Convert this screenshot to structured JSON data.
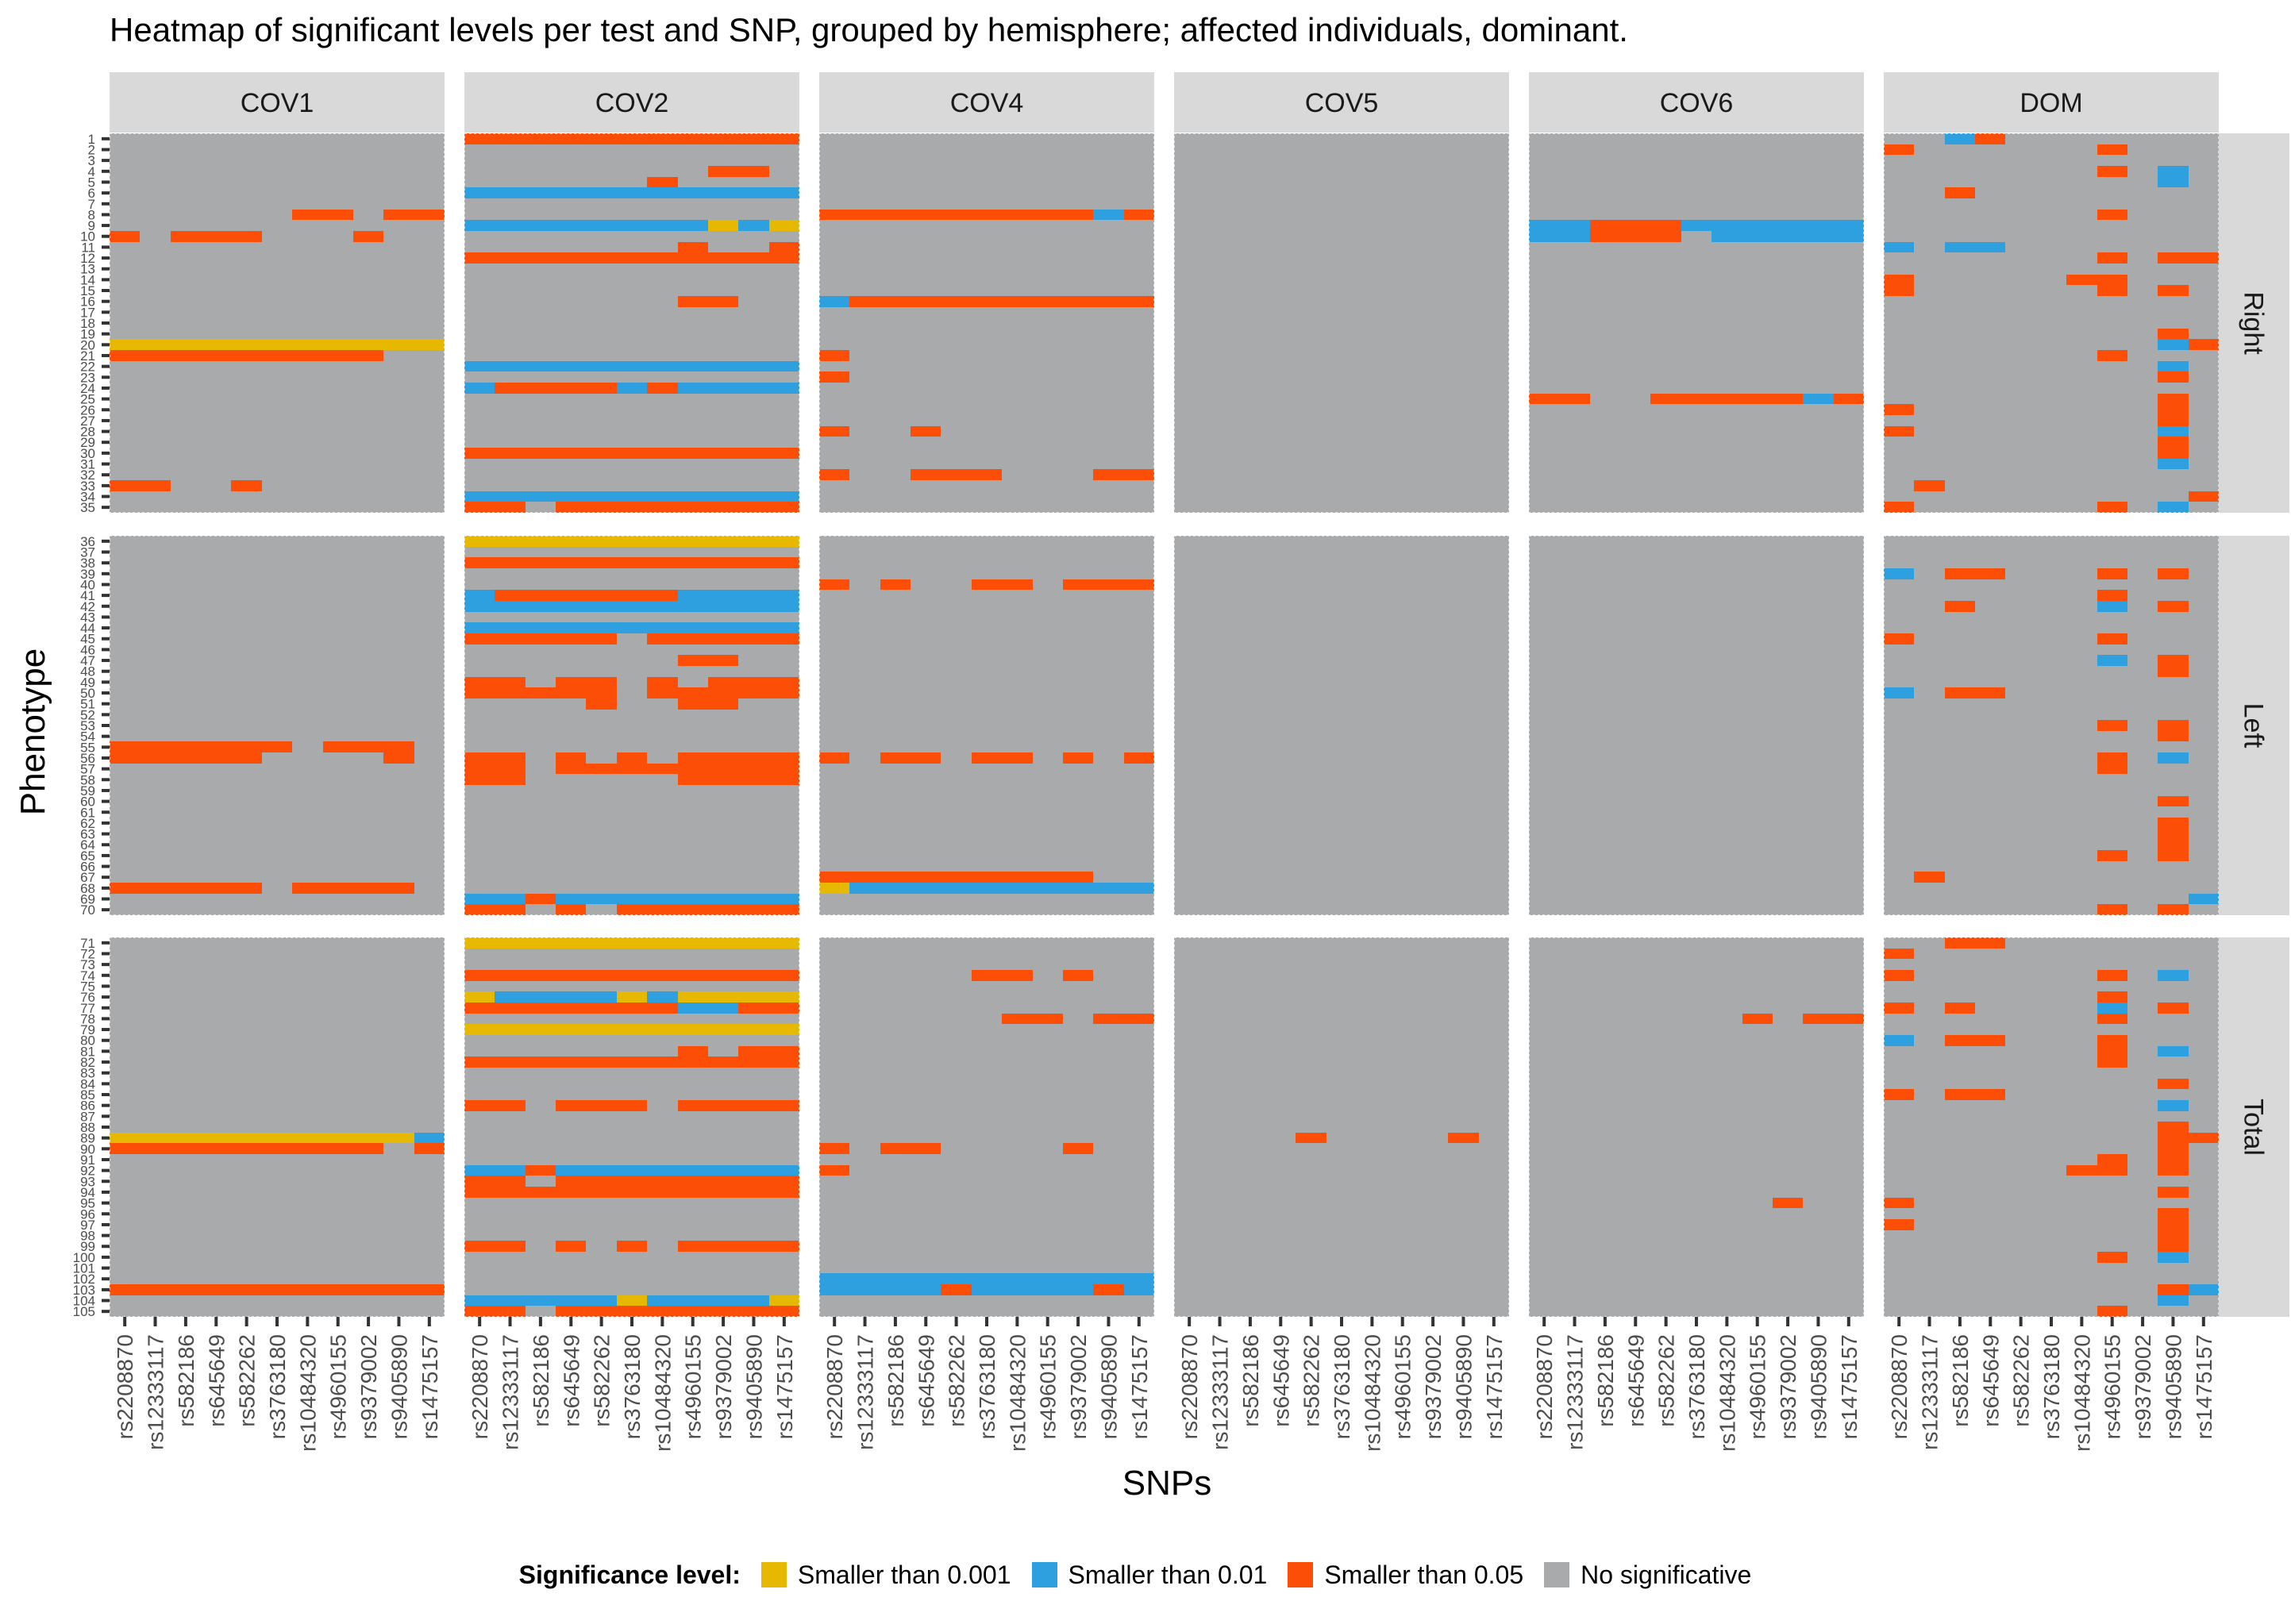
{
  "chart_data": {
    "type": "heatmap",
    "title": "Heatmap of significant levels per test and SNP, grouped by hemisphere; affected individuals, dominant.",
    "xlabel": "SNPs",
    "ylabel": "Phenotype",
    "tests": [
      "COV1",
      "COV2",
      "COV4",
      "COV5",
      "COV6",
      "DOM"
    ],
    "hemispheres": [
      {
        "name": "Right",
        "rows": [
          1,
          35
        ]
      },
      {
        "name": "Left",
        "rows": [
          36,
          70
        ]
      },
      {
        "name": "Total",
        "rows": [
          71,
          105
        ]
      }
    ],
    "snps": [
      "rs2208870",
      "rs12333117",
      "rs582186",
      "rs645649",
      "rs582262",
      "rs3763180",
      "rs10484320",
      "rs4960155",
      "rs9379002",
      "rs9405890",
      "rs1475157"
    ],
    "levels": {
      "Y": {
        "label": "Smaller than 0.001",
        "color": "#E6B800"
      },
      "B": {
        "label": "Smaller than 0.01",
        "color": "#2E9FDF"
      },
      "O": {
        "label": "Smaller than 0.05",
        "color": "#FC4E07"
      },
      "N": {
        "label": "No significative",
        "color": "#A9AAAC"
      }
    },
    "cell_encoding": "Each test maps phenotype row number to an 11-character string, one character per SNP in the order of 'snps'. Y = smaller than 0.001, B = smaller than 0.01, O = smaller than 0.05, N = no significative. Rows not listed are N for all SNPs.",
    "cells": {
      "COV1": {
        "8": "NNNNNNOONOO",
        "10": "ONOOONNNONN",
        "20": "YYYYYYYYYYY",
        "21": "OOOOOOOOONN",
        "33": "OONNONNNNNN",
        "55": "OOOOOONOOON",
        "56": "OOOOONNNNON",
        "68": "OOOOONOOOON",
        "89": "YYYYYYYYYYB",
        "90": "OOOOOOOOONO",
        "103": "OOOOOOOOOOO"
      },
      "COV2": {
        "1": "OOOOOOOOOOO",
        "4": "NNNNNNNNOON",
        "5": "NNNNNNONNNN",
        "6": "BBBBBBBBBBB",
        "9": "BBBBBBBBYBY",
        "11": "NNNNNNNONNO",
        "12": "OOOOOOOOOOO",
        "16": "NNNNNNNOONN",
        "22": "BBBBBBBBBBB",
        "24": "BOOOOBOBBBB",
        "30": "OOOOOOOOOOO",
        "34": "BBBBBBBBBBB",
        "35": "OONOOOOOOOO",
        "36": "YYYYYYYYYYY",
        "38": "OOOOOOOOOOO",
        "41": "BOOOOOOBBBB",
        "42": "BBBBBBBBBBB",
        "44": "BBBBBBBBBBB",
        "45": "OOOOONOOOOO",
        "47": "NNNNNNNOONN",
        "49": "OONOONONOOO",
        "50": "OOOOONOOOOO",
        "51": "NNNNONNOONN",
        "56": "OONONONOOOO",
        "57": "OONOOOOOOOO",
        "58": "OONNNNNOOOO",
        "69": "BBOBBBBBBBB",
        "70": "OONONOOOOOO",
        "71": "YYYYYYYYYYY",
        "74": "OOOOOOOOOOO",
        "76": "YBBBBYBYYYY",
        "77": "OOOOOOOBBOO",
        "79": "YYYYYYYYYYY",
        "81": "NNNNNNNONOO",
        "82": "OOOOOOOOOOO",
        "86": "OONOOONOOOO",
        "92": "BBOBBBBBBBB",
        "93": "OONOOOOOOOO",
        "94": "OOOOOOOOOOO",
        "99": "OONONONOOOO",
        "104": "BBBBBYBBBBY",
        "105": "OONOOOOOOOO"
      },
      "COV4": {
        "8": "OOOOOOOOOBO",
        "16": "BOOOOOOOOOO",
        "21": "ONNNNNNNNNN",
        "23": "ONNNNNNNNNN",
        "28": "ONNONNNNNNN",
        "32": "ONNOOONNNOO",
        "40": "ONONNOONOOO",
        "56": "ONOONOONONO",
        "67": "OOOOOOOOONN",
        "68": "YBBBBBBBBBB",
        "74": "NNNNNOONONN",
        "78": "NNNNNNOONOO",
        "90": "ONOONNNNONN",
        "92": "ONNNNNNNNNN",
        "102": "BBBBBBBBBBB",
        "103": "BBBBOBBBBOB"
      },
      "COV5": {
        "89": "NNNNONNNNON"
      },
      "COV6": {
        "9": "BBOOOBBBBBB",
        "10": "BBOOONBBBBB",
        "25": "OONNOOOOOBO",
        "78": "NNNNNNNONOO",
        "95": "NNNNNNNNONN"
      },
      "DOM": {
        "1": "NNBONNNNNNN",
        "2": "ONNNNNNONNN",
        "4": "NNNNNNNONBN",
        "5": "NNNNNNNNNBN",
        "6": "NNONNNNNNNN",
        "8": "NNNNNNNONNN",
        "11": "BNBBNNNNNNN",
        "12": "NNNNNNNONOO",
        "14": "ONNNNNOONNN",
        "15": "ONNNNNNONON",
        "19": "NNNNNNNNNON",
        "20": "NNNNNNNNNBO",
        "21": "NNNNNNNONNN",
        "22": "NNNNNNNNNBN",
        "23": "NNNNNNNNNON",
        "25": "NNNNNNNNNON",
        "26": "ONNNNNNNNON",
        "27": "NNNNNNNNNON",
        "28": "ONNNNNNNNBN",
        "29": "NNNNNNNNNON",
        "30": "NNNNNNNNNON",
        "31": "NNNNNNNNNBN",
        "33": "NONNNNNNNNN",
        "34": "NNNNNNNNNNO",
        "35": "ONNNNNNONBN",
        "39": "BNOONNNONON",
        "41": "NNNNNNNONNN",
        "42": "NNONNNNBNON",
        "45": "ONNNNNNONNN",
        "47": "NNNNNNNBNON",
        "48": "NNNNNNNNNON",
        "50": "BNOONNNNNNN",
        "53": "NNNNNNNONON",
        "54": "NNNNNNNNNON",
        "56": "NNNNNNNONBN",
        "57": "NNNNNNNONNN",
        "60": "NNNNNNNNNON",
        "62": "NNNNNNNNNON",
        "63": "NNNNNNNNNON",
        "64": "NNNNNNNNNON",
        "65": "NNNNNNNONON",
        "67": "NONNNNNNNNN",
        "69": "NNNNNNNNNNB",
        "70": "NNNNNNNONON",
        "71": "NNOONNNNNNN",
        "72": "ONNNNNNNNNN",
        "74": "ONNNNNNONBN",
        "76": "NNNNNNNONNN",
        "77": "ONONNNNBNON",
        "78": "NNNNNNNONNN",
        "79": "NNNNNNNNNNN",
        "80": "BNOONNNONNN",
        "81": "NNNNNNNONBN",
        "82": "NNNNNNNONNN",
        "84": "NNNNNNNNNON",
        "85": "ONOONNNNNNN",
        "86": "NNNNNNNNNBN",
        "88": "NNNNNNNNNON",
        "89": "NNNNNNNNNOO",
        "90": "NNNNNNNNNON",
        "91": "NNNNNNNONON",
        "92": "NNNNNNOONON",
        "94": "NNNNNNNNNON",
        "95": "ONNNNNNNNNN",
        "96": "NNNNNNNNNON",
        "97": "ONNNNNNNNON",
        "98": "NNNNNNNNNON",
        "99": "NNNNNNNNNON",
        "100": "NNNNNNNONBN",
        "103": "NNNNNNNNNOB",
        "104": "NNNNNNNNNBN",
        "105": "NNNNNNNONNN"
      }
    },
    "legend": {
      "title": "Significance level:",
      "position": "bottom",
      "items": [
        "Smaller than 0.001",
        "Smaller than 0.01",
        "Smaller than 0.05",
        "No significative"
      ]
    },
    "grid": true
  }
}
